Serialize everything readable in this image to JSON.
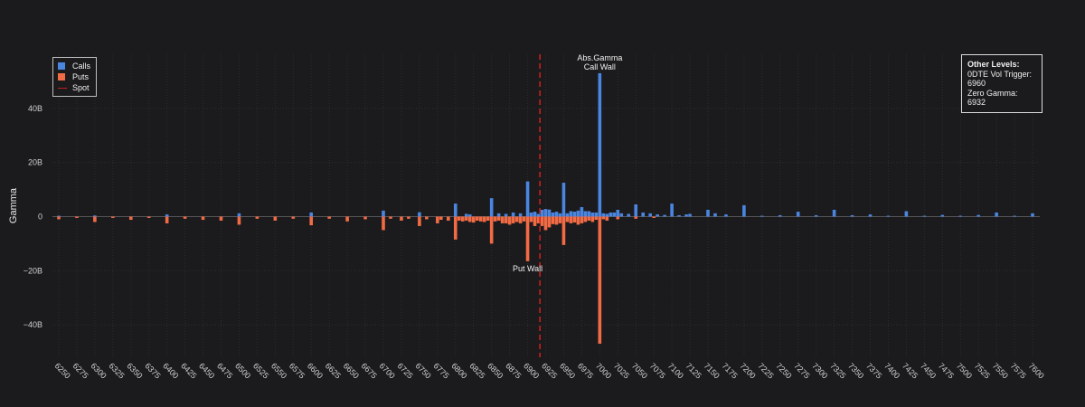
{
  "colors": {
    "background": "#1b1b1d",
    "calls": "#4a86e0",
    "puts": "#f26b45",
    "spot": "#d42020",
    "grid": "#2c2c30",
    "zero_line": "#555558"
  },
  "legend": {
    "calls": "Calls",
    "puts": "Puts",
    "spot": "Spot"
  },
  "levels_box": {
    "title": "Other Levels:",
    "vol_trigger": "0DTE Vol Trigger: 6960",
    "zero_gamma": "Zero Gamma: 6932"
  },
  "chart_data": {
    "type": "bar",
    "ylabel": "Gamma",
    "ylim": [
      -52,
      60
    ],
    "yticks": [
      {
        "value": 40,
        "label": "40B"
      },
      {
        "value": 20,
        "label": "20B"
      },
      {
        "value": 0,
        "label": "0"
      },
      {
        "value": -20,
        "label": "−20B"
      },
      {
        "value": -40,
        "label": "−40B"
      }
    ],
    "x_tick_labels": [
      "6250",
      "6275",
      "6300",
      "6325",
      "6350",
      "6375",
      "6400",
      "6425",
      "6450",
      "6475",
      "6500",
      "6525",
      "6550",
      "6575",
      "6600",
      "6625",
      "6650",
      "6675",
      "6700",
      "6725",
      "6750",
      "6775",
      "6800",
      "6825",
      "6850",
      "6875",
      "6900",
      "6925",
      "6950",
      "6975",
      "7000",
      "7025",
      "7050",
      "7075",
      "7100",
      "7125",
      "7150",
      "7175",
      "7200",
      "7225",
      "7250",
      "7275",
      "7300",
      "7325",
      "7350",
      "7375",
      "7400",
      "7425",
      "7450",
      "7475",
      "7500",
      "7525",
      "7550",
      "7575",
      "7600"
    ],
    "spot": 6917,
    "series": [
      {
        "name": "Calls",
        "strikes": [
          6250,
          6300,
          6400,
          6500,
          6600,
          6700,
          6750,
          6800,
          6815,
          6820,
          6850,
          6860,
          6870,
          6880,
          6890,
          6900,
          6905,
          6910,
          6915,
          6920,
          6925,
          6930,
          6935,
          6940,
          6945,
          6950,
          6955,
          6960,
          6965,
          6970,
          6975,
          6980,
          6985,
          6990,
          6995,
          7000,
          7005,
          7010,
          7015,
          7020,
          7025,
          7030,
          7040,
          7050,
          7060,
          7070,
          7080,
          7090,
          7100,
          7110,
          7120,
          7125,
          7150,
          7160,
          7175,
          7200,
          7225,
          7250,
          7275,
          7300,
          7325,
          7350,
          7375,
          7400,
          7425,
          7450,
          7475,
          7500,
          7525,
          7550,
          7575,
          7600
        ],
        "values": [
          0.3,
          0.4,
          0.8,
          1.2,
          1.5,
          2.2,
          1.6,
          4.8,
          1.0,
          0.8,
          6.8,
          1.2,
          1.0,
          1.5,
          1.2,
          13.0,
          1.5,
          1.8,
          1.0,
          2.5,
          2.8,
          2.6,
          1.5,
          1.8,
          1.2,
          12.5,
          1.2,
          2.0,
          1.8,
          2.2,
          3.5,
          2.0,
          2.0,
          1.5,
          1.5,
          53.0,
          1.2,
          1.0,
          1.5,
          1.5,
          2.5,
          1.2,
          1.0,
          4.5,
          1.5,
          1.2,
          0.8,
          0.6,
          4.8,
          0.5,
          0.8,
          1.0,
          2.5,
          1.2,
          0.8,
          4.2,
          0.3,
          0.5,
          1.8,
          0.5,
          2.5,
          0.5,
          0.8,
          0.3,
          2.0,
          0.3,
          0.6,
          0.3,
          0.6,
          1.5,
          0.3,
          1.2
        ]
      },
      {
        "name": "Puts",
        "strikes": [
          6250,
          6275,
          6300,
          6325,
          6350,
          6375,
          6400,
          6425,
          6450,
          6475,
          6500,
          6525,
          6550,
          6575,
          6600,
          6625,
          6650,
          6675,
          6700,
          6710,
          6725,
          6735,
          6750,
          6760,
          6775,
          6780,
          6790,
          6800,
          6805,
          6810,
          6815,
          6820,
          6825,
          6830,
          6835,
          6840,
          6845,
          6850,
          6855,
          6860,
          6865,
          6870,
          6875,
          6880,
          6885,
          6890,
          6895,
          6900,
          6905,
          6910,
          6915,
          6920,
          6925,
          6930,
          6935,
          6940,
          6945,
          6950,
          6955,
          6960,
          6965,
          6970,
          6975,
          6980,
          6985,
          6990,
          6995,
          7000,
          7005,
          7010,
          7025,
          7050,
          7075
        ],
        "values": [
          -1.0,
          -0.5,
          -2.0,
          -0.5,
          -1.2,
          -0.5,
          -2.5,
          -0.8,
          -1.2,
          -1.5,
          -3.0,
          -0.8,
          -1.5,
          -0.8,
          -3.2,
          -0.8,
          -1.8,
          -1.0,
          -5.0,
          -0.8,
          -1.5,
          -0.8,
          -3.5,
          -1.0,
          -2.5,
          -1.2,
          -1.5,
          -8.5,
          -1.5,
          -1.8,
          -1.5,
          -2.0,
          -2.2,
          -1.5,
          -1.8,
          -2.0,
          -1.5,
          -10.0,
          -1.8,
          -1.5,
          -2.5,
          -2.5,
          -3.0,
          -2.5,
          -2.0,
          -2.5,
          -1.8,
          -16.5,
          -2.0,
          -3.5,
          -2.5,
          -3.5,
          -5.0,
          -4.0,
          -2.8,
          -3.0,
          -2.5,
          -10.5,
          -2.0,
          -2.5,
          -2.2,
          -3.0,
          -2.5,
          -2.0,
          -1.5,
          -2.0,
          -1.2,
          -47.0,
          -1.0,
          -1.5,
          -1.0,
          -0.8,
          -0.5
        ]
      }
    ],
    "annotations": [
      {
        "x": 7000,
        "y": 53,
        "lines": [
          "Abs.Gamma",
          "Call Wall"
        ],
        "position": "above"
      },
      {
        "x": 6900,
        "y": -16.5,
        "lines": [
          "Put Wall"
        ],
        "position": "below"
      }
    ]
  }
}
